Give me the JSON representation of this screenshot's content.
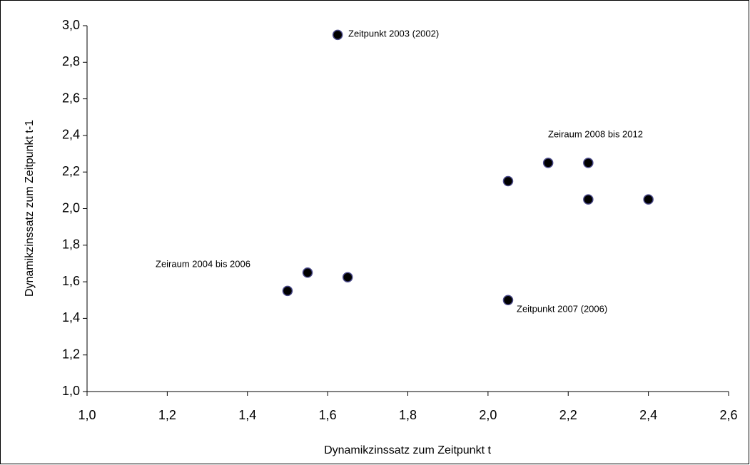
{
  "chart_data": {
    "type": "scatter",
    "x_label": "Dynamikzinssatz zum Zeitpunkt t",
    "y_label": "Dynamikzinssatz zum Zeitpunkt t-1",
    "x": [
      1.625,
      1.5,
      1.55,
      1.65,
      2.05,
      2.05,
      2.15,
      2.25,
      2.25,
      2.4
    ],
    "values": [
      2.95,
      1.55,
      1.65,
      1.625,
      1.5,
      2.15,
      2.25,
      2.25,
      2.05,
      2.05
    ],
    "color": "#000000",
    "xlim": [
      1.0,
      2.6
    ],
    "ylim": [
      1.0,
      3.0
    ],
    "xticks": [
      {
        "value": 1.0,
        "label": "1,0"
      },
      {
        "value": 1.2,
        "label": "1,2"
      },
      {
        "value": 1.4,
        "label": "1,4"
      },
      {
        "value": 1.6,
        "label": "1,6"
      },
      {
        "value": 1.8,
        "label": "1,8"
      },
      {
        "value": 2.0,
        "label": "2,0"
      },
      {
        "value": 2.2,
        "label": "2,2"
      },
      {
        "value": 2.4,
        "label": "2,4"
      },
      {
        "value": 2.6,
        "label": "2,6"
      }
    ],
    "yticks": [
      {
        "value": 1.0,
        "label": "1,0"
      },
      {
        "value": 1.2,
        "label": "1,2"
      },
      {
        "value": 1.4,
        "label": "1,4"
      },
      {
        "value": 1.6,
        "label": "1,6"
      },
      {
        "value": 1.8,
        "label": "1,8"
      },
      {
        "value": 2.0,
        "label": "2,0"
      },
      {
        "value": 2.2,
        "label": "2,2"
      },
      {
        "value": 2.4,
        "label": "2,4"
      },
      {
        "value": 2.6,
        "label": "2,6"
      },
      {
        "value": 2.8,
        "label": "2,8"
      },
      {
        "value": 3.0,
        "label": "3,0"
      }
    ],
    "annotations": [
      "Zeitpunkt 2003 (2002)",
      "Zeiraum 2008 bis 2012",
      "Zeiraum 2004 bis 2006",
      "Zeitpunkt 2007 (2006)"
    ]
  }
}
